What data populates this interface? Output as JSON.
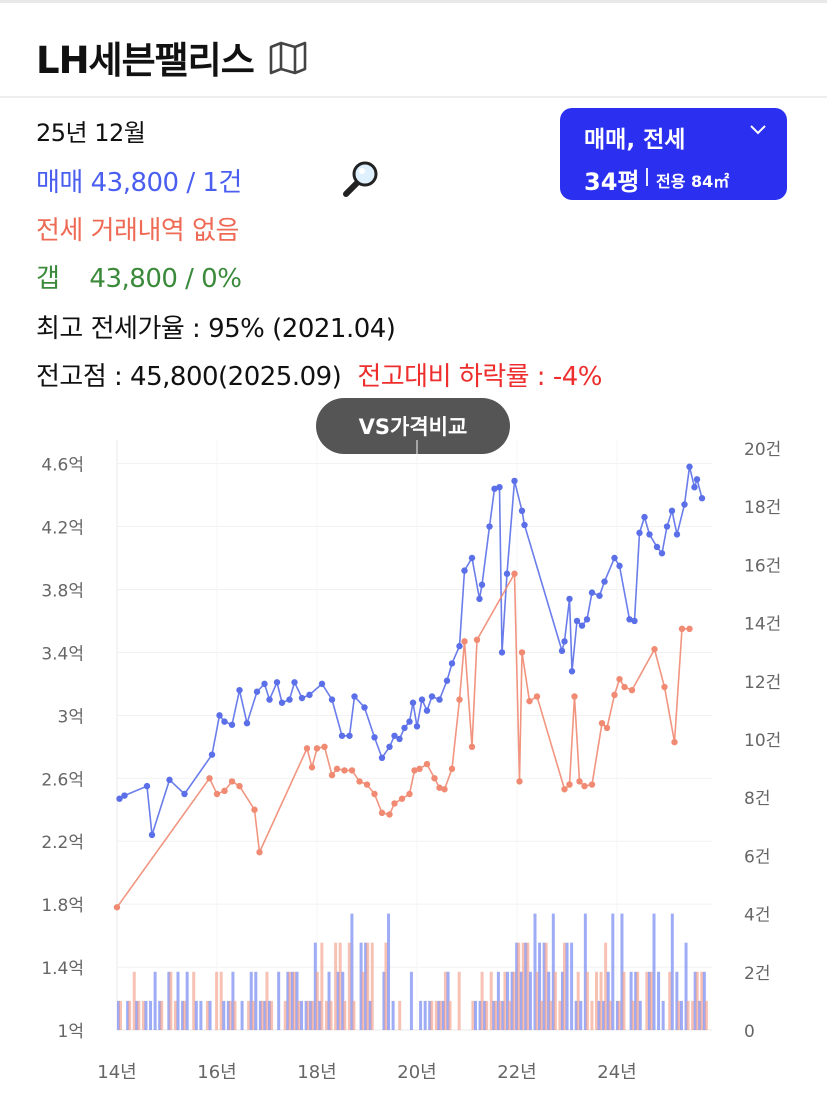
{
  "header": {
    "title": "LH세븐팰리스",
    "map_icon": "map-icon"
  },
  "summary": {
    "date": "25년 12월",
    "sale": "매매 43,800 / 1건",
    "jeonse": "전세 거래내역 없음",
    "gap_label": "갭",
    "gap_value": "43,800 / 0%",
    "max_rate": "최고 전세가율 : 95% (2021.04)",
    "peak": "전고점 : 45,800(2025.09)",
    "drop": "전고대비 하락률 : -4%",
    "search_icon": "magnifier-icon"
  },
  "type_selector": {
    "line1": "매매, 전세",
    "size": "34평",
    "area": "전용 84㎡",
    "icon": "chevron-down-icon"
  },
  "vs_button": "VS가격비교",
  "colors": {
    "sale": "#5a6fe8",
    "jeonse": "#f08a72",
    "accent": "#2b2ff0",
    "drop": "#ee2d2d"
  },
  "chart_data": {
    "type": "line",
    "left_axis": {
      "ticks": [
        "1억",
        "1.4억",
        "1.8억",
        "2.2억",
        "2.6억",
        "3억",
        "3.4억",
        "3.8억",
        "4.2억",
        "4.6억"
      ],
      "ylim": [
        1.0,
        4.75
      ],
      "unit": "억"
    },
    "right_axis": {
      "ticks": [
        "0",
        "2건",
        "4건",
        "6건",
        "8건",
        "10건",
        "12건",
        "14건",
        "16건",
        "18건",
        "20건"
      ],
      "ylim": [
        0,
        20
      ]
    },
    "x_ticks": [
      "14년",
      "16년",
      "18년",
      "20년",
      "22년",
      "24년"
    ],
    "x_tick_values": [
      2014,
      2016,
      2018,
      2020,
      2022,
      2024
    ],
    "xlim": [
      2014.0,
      2025.9
    ],
    "series": [
      {
        "kind": "line",
        "color": "#5a6fe8",
        "points": [
          [
            2014.05,
            2.47
          ],
          [
            2014.15,
            2.49
          ],
          [
            2014.6,
            2.55
          ],
          [
            2014.7,
            2.24
          ],
          [
            2015.05,
            2.59
          ],
          [
            2015.35,
            2.5
          ],
          [
            2015.9,
            2.75
          ],
          [
            2016.05,
            3.0
          ],
          [
            2016.15,
            2.96
          ],
          [
            2016.3,
            2.94
          ],
          [
            2016.45,
            3.16
          ],
          [
            2016.6,
            2.95
          ],
          [
            2016.8,
            3.15
          ],
          [
            2016.95,
            3.2
          ],
          [
            2017.05,
            3.1
          ],
          [
            2017.2,
            3.21
          ],
          [
            2017.3,
            3.08
          ],
          [
            2017.45,
            3.1
          ],
          [
            2017.55,
            3.21
          ],
          [
            2017.7,
            3.11
          ],
          [
            2017.85,
            3.13
          ],
          [
            2018.1,
            3.2
          ],
          [
            2018.3,
            3.1
          ],
          [
            2018.5,
            2.87
          ],
          [
            2018.65,
            2.87
          ],
          [
            2018.75,
            3.12
          ],
          [
            2018.95,
            3.05
          ],
          [
            2019.15,
            2.86
          ],
          [
            2019.3,
            2.73
          ],
          [
            2019.45,
            2.8
          ],
          [
            2019.55,
            2.87
          ],
          [
            2019.65,
            2.85
          ],
          [
            2019.75,
            2.92
          ],
          [
            2019.85,
            2.96
          ],
          [
            2019.92,
            3.08
          ],
          [
            2020.0,
            2.93
          ],
          [
            2020.1,
            3.1
          ],
          [
            2020.2,
            3.03
          ],
          [
            2020.3,
            3.12
          ],
          [
            2020.45,
            3.1
          ],
          [
            2020.6,
            3.22
          ],
          [
            2020.7,
            3.33
          ],
          [
            2020.85,
            3.44
          ],
          [
            2020.95,
            3.92
          ],
          [
            2021.1,
            4.0
          ],
          [
            2021.25,
            3.74
          ],
          [
            2021.3,
            3.83
          ],
          [
            2021.45,
            4.2
          ],
          [
            2021.55,
            4.44
          ],
          [
            2021.65,
            4.45
          ],
          [
            2021.7,
            3.4
          ],
          [
            2021.8,
            3.9
          ],
          [
            2021.95,
            4.49
          ],
          [
            2022.1,
            4.3
          ],
          [
            2022.15,
            4.21
          ],
          [
            2022.9,
            3.41
          ],
          [
            2022.95,
            3.47
          ],
          [
            2023.05,
            3.74
          ],
          [
            2023.1,
            3.28
          ],
          [
            2023.2,
            3.6
          ],
          [
            2023.3,
            3.57
          ],
          [
            2023.4,
            3.61
          ],
          [
            2023.5,
            3.78
          ],
          [
            2023.65,
            3.76
          ],
          [
            2023.75,
            3.85
          ],
          [
            2023.95,
            4.0
          ],
          [
            2024.05,
            3.95
          ],
          [
            2024.25,
            3.61
          ],
          [
            2024.35,
            3.6
          ],
          [
            2024.45,
            4.16
          ],
          [
            2024.55,
            4.26
          ],
          [
            2024.65,
            4.15
          ],
          [
            2024.8,
            4.07
          ],
          [
            2024.9,
            4.03
          ],
          [
            2025.0,
            4.2
          ],
          [
            2025.1,
            4.3
          ],
          [
            2025.2,
            4.15
          ],
          [
            2025.35,
            4.34
          ],
          [
            2025.45,
            4.58
          ],
          [
            2025.55,
            4.45
          ],
          [
            2025.6,
            4.5
          ],
          [
            2025.7,
            4.38
          ]
        ]
      },
      {
        "kind": "line",
        "color": "#f08a72",
        "points": [
          [
            2014.0,
            1.78
          ],
          [
            2015.85,
            2.6
          ],
          [
            2016.0,
            2.5
          ],
          [
            2016.15,
            2.52
          ],
          [
            2016.3,
            2.58
          ],
          [
            2016.45,
            2.55
          ],
          [
            2016.75,
            2.4
          ],
          [
            2016.85,
            2.13
          ],
          [
            2017.8,
            2.79
          ],
          [
            2017.9,
            2.67
          ],
          [
            2018.0,
            2.79
          ],
          [
            2018.15,
            2.8
          ],
          [
            2018.3,
            2.62
          ],
          [
            2018.4,
            2.66
          ],
          [
            2018.55,
            2.65
          ],
          [
            2018.7,
            2.65
          ],
          [
            2018.85,
            2.58
          ],
          [
            2019.0,
            2.56
          ],
          [
            2019.15,
            2.5
          ],
          [
            2019.3,
            2.38
          ],
          [
            2019.45,
            2.37
          ],
          [
            2019.55,
            2.44
          ],
          [
            2019.7,
            2.47
          ],
          [
            2019.85,
            2.5
          ],
          [
            2019.95,
            2.65
          ],
          [
            2020.05,
            2.66
          ],
          [
            2020.2,
            2.69
          ],
          [
            2020.35,
            2.6
          ],
          [
            2020.45,
            2.54
          ],
          [
            2020.55,
            2.53
          ],
          [
            2020.7,
            2.66
          ],
          [
            2020.85,
            3.1
          ],
          [
            2020.95,
            3.47
          ],
          [
            2021.1,
            2.8
          ],
          [
            2021.2,
            3.48
          ],
          [
            2021.95,
            3.9
          ],
          [
            2022.05,
            2.58
          ],
          [
            2022.1,
            3.4
          ],
          [
            2022.25,
            3.09
          ],
          [
            2022.4,
            3.12
          ],
          [
            2022.95,
            2.53
          ],
          [
            2023.05,
            2.56
          ],
          [
            2023.15,
            3.12
          ],
          [
            2023.25,
            2.58
          ],
          [
            2023.35,
            2.55
          ],
          [
            2023.5,
            2.56
          ],
          [
            2023.7,
            2.95
          ],
          [
            2023.8,
            2.92
          ],
          [
            2023.95,
            3.13
          ],
          [
            2024.05,
            3.23
          ],
          [
            2024.15,
            3.18
          ],
          [
            2024.3,
            3.16
          ],
          [
            2024.75,
            3.42
          ],
          [
            2024.95,
            3.18
          ],
          [
            2025.15,
            2.83
          ],
          [
            2025.3,
            3.55
          ],
          [
            2025.45,
            3.55
          ]
        ]
      }
    ]
  }
}
